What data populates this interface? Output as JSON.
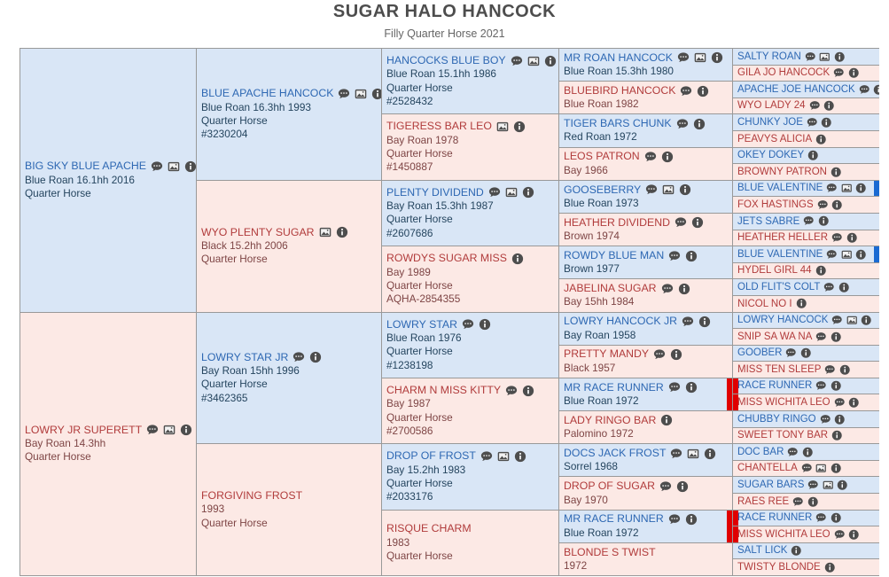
{
  "page": {
    "title": "SUGAR HALO HANCOCK",
    "subtitle": "Filly Quarter Horse 2021"
  },
  "colors": {
    "male_background": "#d9e6f6",
    "female_background": "#fce9e5",
    "male_name_link": "#2e68b3",
    "female_name_link": "#b13c3c",
    "male_detail_text": "#25455f",
    "female_detail_text": "#7e4545",
    "cell_border": "#999999",
    "duplicate_marker_red": "#e00000",
    "duplicate_marker_blue": "#1a6ad2",
    "icon_gray": "#4d4d4d"
  },
  "pedigree": {
    "generations": [
      {
        "cells": [
          {
            "name": "BIG SKY BLUE APACHE",
            "sex": "m",
            "details": [
              "Blue Roan 16.1hh 2016",
              "Quarter Horse"
            ],
            "icons": [
              "comments",
              "photo",
              "info"
            ]
          },
          {
            "name": "LOWRY JR SUPERETT",
            "sex": "f",
            "details": [
              "Bay Roan 14.3hh",
              "Quarter Horse"
            ],
            "icons": [
              "comments",
              "photo",
              "info"
            ]
          }
        ]
      },
      {
        "cells": [
          {
            "name": "BLUE APACHE HANCOCK",
            "sex": "m",
            "details": [
              "Blue Roan 16.3hh 1993",
              "Quarter Horse",
              "#3230204"
            ],
            "icons": [
              "comments",
              "photo",
              "info"
            ]
          },
          {
            "name": "WYO PLENTY SUGAR",
            "sex": "f",
            "details": [
              "Black 15.2hh 2006",
              "Quarter Horse"
            ],
            "icons": [
              "photo",
              "info"
            ]
          },
          {
            "name": "LOWRY STAR JR",
            "sex": "m",
            "details": [
              "Bay Roan 15hh 1996",
              "Quarter Horse",
              "#3462365"
            ],
            "icons": [
              "comments",
              "info"
            ]
          },
          {
            "name": "FORGIVING FROST",
            "sex": "f",
            "details": [
              "1993",
              "Quarter Horse"
            ],
            "icons": []
          }
        ]
      },
      {
        "cells": [
          {
            "name": "HANCOCKS BLUE BOY",
            "sex": "m",
            "details": [
              "Blue Roan 15.1hh 1986",
              "Quarter Horse",
              "#2528432"
            ],
            "icons": [
              "comments",
              "photo",
              "info"
            ]
          },
          {
            "name": "TIGERESS BAR LEO",
            "sex": "f",
            "details": [
              "Bay Roan 1978",
              "Quarter Horse",
              "#1450887"
            ],
            "icons": [
              "photo",
              "info"
            ]
          },
          {
            "name": "PLENTY DIVIDEND",
            "sex": "m",
            "details": [
              "Bay Roan 15.3hh 1987",
              "Quarter Horse",
              "#2607686"
            ],
            "icons": [
              "comments",
              "photo",
              "info"
            ]
          },
          {
            "name": "ROWDYS SUGAR MISS",
            "sex": "f",
            "details": [
              "Bay 1989",
              "Quarter Horse",
              "AQHA-2854355"
            ],
            "icons": [
              "info"
            ]
          },
          {
            "name": "LOWRY STAR",
            "sex": "m",
            "details": [
              "Blue Roan 1976",
              "Quarter Horse",
              "#1238198"
            ],
            "icons": [
              "comments",
              "info"
            ]
          },
          {
            "name": "CHARM N MISS KITTY",
            "sex": "f",
            "details": [
              "Bay 1987",
              "Quarter Horse",
              "#2700586"
            ],
            "icons": [
              "comments",
              "info"
            ]
          },
          {
            "name": "DROP OF FROST",
            "sex": "m",
            "details": [
              "Bay 15.2hh 1983",
              "Quarter Horse",
              "#2033176"
            ],
            "icons": [
              "comments",
              "photo",
              "info"
            ]
          },
          {
            "name": "RISQUE CHARM",
            "sex": "f",
            "details": [
              "1983",
              "Quarter Horse"
            ],
            "icons": []
          }
        ]
      },
      {
        "cells": [
          {
            "name": "MR ROAN HANCOCK",
            "sex": "m",
            "details": [
              "Blue Roan 15.3hh 1980"
            ],
            "icons": [
              "comments",
              "photo",
              "info"
            ]
          },
          {
            "name": "BLUEBIRD HANCOCK",
            "sex": "f",
            "details": [
              "Blue Roan 1982"
            ],
            "icons": [
              "comments",
              "info"
            ]
          },
          {
            "name": "TIGER BARS CHUNK",
            "sex": "m",
            "details": [
              "Red Roan 1972"
            ],
            "icons": [
              "comments",
              "info"
            ]
          },
          {
            "name": "LEOS PATRON",
            "sex": "f",
            "details": [
              "Bay 1966"
            ],
            "icons": [
              "comments",
              "info"
            ]
          },
          {
            "name": "GOOSEBERRY",
            "sex": "m",
            "details": [
              "Blue Roan 1973"
            ],
            "icons": [
              "comments",
              "photo",
              "info"
            ]
          },
          {
            "name": "HEATHER DIVIDEND",
            "sex": "f",
            "details": [
              "Brown 1974"
            ],
            "icons": [
              "comments",
              "info"
            ]
          },
          {
            "name": "ROWDY BLUE MAN",
            "sex": "m",
            "details": [
              "Brown 1977"
            ],
            "icons": [
              "comments",
              "info"
            ]
          },
          {
            "name": "JABELINA SUGAR",
            "sex": "f",
            "details": [
              "Bay 15hh 1984"
            ],
            "icons": [
              "comments",
              "info"
            ]
          },
          {
            "name": "LOWRY HANCOCK JR",
            "sex": "m",
            "details": [
              "Bay Roan 1958"
            ],
            "icons": [
              "comments",
              "info"
            ]
          },
          {
            "name": "PRETTY MANDY",
            "sex": "f",
            "details": [
              "Black 1957"
            ],
            "icons": [
              "comments",
              "info"
            ]
          },
          {
            "name": "MR RACE RUNNER",
            "sex": "m",
            "details": [
              "Blue Roan 1972"
            ],
            "icons": [
              "comments",
              "info"
            ],
            "marker": {
              "side": "right",
              "color": "red"
            }
          },
          {
            "name": "LADY RINGO BAR",
            "sex": "f",
            "details": [
              "Palomino 1972"
            ],
            "icons": [
              "info"
            ]
          },
          {
            "name": "DOCS JACK FROST",
            "sex": "m",
            "details": [
              "Sorrel 1968"
            ],
            "icons": [
              "comments",
              "photo",
              "info"
            ]
          },
          {
            "name": "DROP OF SUGAR",
            "sex": "f",
            "details": [
              "Bay 1970"
            ],
            "icons": [
              "comments",
              "info"
            ]
          },
          {
            "name": "MR RACE RUNNER",
            "sex": "m",
            "details": [
              "Blue Roan 1972"
            ],
            "icons": [
              "comments",
              "info"
            ],
            "marker": {
              "side": "right",
              "color": "red"
            }
          },
          {
            "name": "BLONDE S TWIST",
            "sex": "f",
            "details": [
              "1972"
            ],
            "icons": []
          }
        ]
      },
      {
        "cells": [
          {
            "name": "SALTY ROAN",
            "sex": "m",
            "details": [],
            "icons": [
              "comments",
              "photo",
              "info"
            ]
          },
          {
            "name": "GILA JO HANCOCK",
            "sex": "f",
            "details": [],
            "icons": [
              "comments",
              "info"
            ]
          },
          {
            "name": "APACHE JOE HANCOCK",
            "sex": "m",
            "details": [],
            "icons": [
              "comments",
              "info"
            ]
          },
          {
            "name": "WYO LADY 24",
            "sex": "f",
            "details": [],
            "icons": [
              "comments",
              "info"
            ]
          },
          {
            "name": "CHUNKY JOE",
            "sex": "m",
            "details": [],
            "icons": [
              "comments",
              "info"
            ]
          },
          {
            "name": "PEAVYS ALICIA",
            "sex": "f",
            "details": [],
            "icons": [
              "info"
            ]
          },
          {
            "name": "OKEY DOKEY",
            "sex": "m",
            "details": [],
            "icons": [
              "info"
            ]
          },
          {
            "name": "BROWNY PATRON",
            "sex": "f",
            "details": [],
            "icons": [
              "info"
            ]
          },
          {
            "name": "BLUE VALENTINE",
            "sex": "m",
            "details": [],
            "icons": [
              "comments",
              "photo",
              "info"
            ],
            "marker": {
              "side": "right",
              "color": "blue"
            }
          },
          {
            "name": "FOX HASTINGS",
            "sex": "f",
            "details": [],
            "icons": [
              "comments",
              "info"
            ]
          },
          {
            "name": "JETS SABRE",
            "sex": "m",
            "details": [],
            "icons": [
              "comments",
              "info"
            ]
          },
          {
            "name": "HEATHER HELLER",
            "sex": "f",
            "details": [],
            "icons": [
              "comments",
              "info"
            ]
          },
          {
            "name": "BLUE VALENTINE",
            "sex": "m",
            "details": [],
            "icons": [
              "comments",
              "photo",
              "info"
            ],
            "marker": {
              "side": "right",
              "color": "blue"
            }
          },
          {
            "name": "HYDEL GIRL 44",
            "sex": "f",
            "details": [],
            "icons": [
              "info"
            ]
          },
          {
            "name": "OLD FLIT'S COLT",
            "sex": "m",
            "details": [],
            "icons": [
              "comments",
              "info"
            ]
          },
          {
            "name": "NICOL NO I",
            "sex": "f",
            "details": [],
            "icons": [
              "info"
            ]
          },
          {
            "name": "LOWRY HANCOCK",
            "sex": "m",
            "details": [],
            "icons": [
              "comments",
              "photo",
              "info"
            ]
          },
          {
            "name": "SNIP SA WA NA",
            "sex": "f",
            "details": [],
            "icons": [
              "comments",
              "info"
            ]
          },
          {
            "name": "GOOBER",
            "sex": "m",
            "details": [],
            "icons": [
              "comments",
              "info"
            ]
          },
          {
            "name": "MISS TEN SLEEP",
            "sex": "f",
            "details": [],
            "icons": [
              "comments",
              "info"
            ]
          },
          {
            "name": "RACE RUNNER",
            "sex": "m",
            "details": [],
            "icons": [
              "comments",
              "info"
            ],
            "marker": {
              "side": "left",
              "color": "red"
            }
          },
          {
            "name": "MISS WICHITA LEO",
            "sex": "f",
            "details": [],
            "icons": [
              "comments",
              "info"
            ],
            "marker": {
              "side": "left",
              "color": "red"
            }
          },
          {
            "name": "CHUBBY RINGO",
            "sex": "m",
            "details": [],
            "icons": [
              "comments",
              "info"
            ]
          },
          {
            "name": "SWEET TONY BAR",
            "sex": "f",
            "details": [],
            "icons": [
              "info"
            ]
          },
          {
            "name": "DOC BAR",
            "sex": "m",
            "details": [],
            "icons": [
              "comments",
              "info"
            ]
          },
          {
            "name": "CHANTELLA",
            "sex": "f",
            "details": [],
            "icons": [
              "comments",
              "photo",
              "info"
            ]
          },
          {
            "name": "SUGAR BARS",
            "sex": "m",
            "details": [],
            "icons": [
              "comments",
              "photo",
              "info"
            ]
          },
          {
            "name": "RAES REE",
            "sex": "f",
            "details": [],
            "icons": [
              "comments",
              "info"
            ]
          },
          {
            "name": "RACE RUNNER",
            "sex": "m",
            "details": [],
            "icons": [
              "comments",
              "info"
            ],
            "marker": {
              "side": "left",
              "color": "red"
            }
          },
          {
            "name": "MISS WICHITA LEO",
            "sex": "f",
            "details": [],
            "icons": [
              "comments",
              "info"
            ],
            "marker": {
              "side": "left",
              "color": "red"
            }
          },
          {
            "name": "SALT LICK",
            "sex": "m",
            "details": [],
            "icons": [
              "info"
            ]
          },
          {
            "name": "TWISTY BLONDE",
            "sex": "f",
            "details": [],
            "icons": [
              "info"
            ]
          }
        ]
      }
    ]
  }
}
